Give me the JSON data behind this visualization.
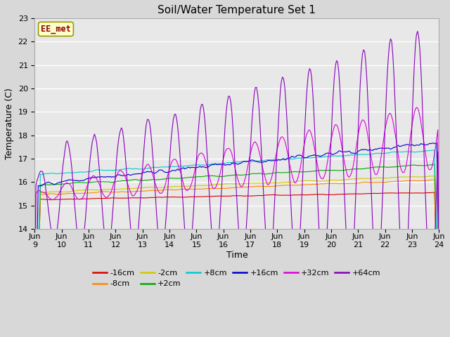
{
  "title": "Soil/Water Temperature Set 1",
  "ylabel": "Temperature (C)",
  "xlabel": "Time",
  "watermark": "EE_met",
  "ylim": [
    14.0,
    23.0
  ],
  "yticks": [
    14.0,
    15.0,
    16.0,
    17.0,
    18.0,
    19.0,
    20.0,
    21.0,
    22.0,
    23.0
  ],
  "x_labels": [
    "Jun 9",
    "Jun 10",
    "Jun 11",
    "Jun 12",
    "Jun 13",
    "Jun 14",
    "Jun 15",
    "Jun 16",
    "Jun 17",
    "Jun 18",
    "Jun 19",
    "Jun 20",
    "Jun 21",
    "Jun 22",
    "Jun 23",
    "Jun 24"
  ],
  "series": [
    {
      "label": "-16cm",
      "color": "#dd0000"
    },
    {
      "label": "-8cm",
      "color": "#ff8800"
    },
    {
      "label": "-2cm",
      "color": "#cccc00"
    },
    {
      "label": "+2cm",
      "color": "#00aa00"
    },
    {
      "label": "+8cm",
      "color": "#00cccc"
    },
    {
      "label": "+16cm",
      "color": "#0000cc"
    },
    {
      "label": "+32cm",
      "color": "#dd00dd"
    },
    {
      "label": "+64cm",
      "color": "#8800bb"
    }
  ],
  "background_color": "#d8d8d8",
  "plot_bg_color": "#e8e8e8",
  "grid_color": "#ffffff",
  "title_fontsize": 11,
  "axis_fontsize": 9,
  "tick_fontsize": 8,
  "legend_fontsize": 8
}
